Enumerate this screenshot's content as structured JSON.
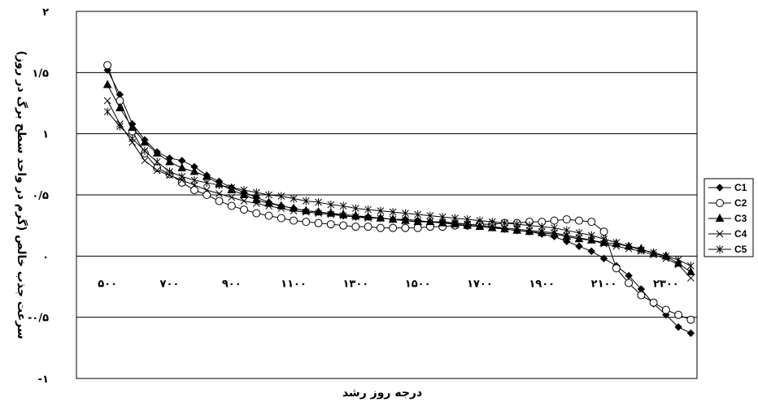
{
  "chart_data": {
    "type": "line",
    "xlabel": "درجه روز رشد",
    "ylabel": "سرعت جذب خالص (گرم در واحد سطح برگ در روز)",
    "xlim": [
      400,
      2400
    ],
    "ylim": [
      -1,
      2
    ],
    "x_ticks": [
      {
        "value": 500,
        "label": "۵۰۰"
      },
      {
        "value": 700,
        "label": "۷۰۰"
      },
      {
        "value": 900,
        "label": "۹۰۰"
      },
      {
        "value": 1100,
        "label": "۱۱۰۰"
      },
      {
        "value": 1300,
        "label": "۱۳۰۰"
      },
      {
        "value": 1500,
        "label": "۱۵۰۰"
      },
      {
        "value": 1700,
        "label": "۱۷۰۰"
      },
      {
        "value": 1900,
        "label": "۱۹۰۰"
      },
      {
        "value": 2100,
        "label": "۲۱۰۰"
      },
      {
        "value": 2300,
        "label": "۲۳۰۰"
      }
    ],
    "y_ticks": [
      {
        "value": 2,
        "label": "۲"
      },
      {
        "value": 1.5,
        "label": "۱/۵"
      },
      {
        "value": 1,
        "label": "۱"
      },
      {
        "value": 0.5,
        "label": "۰/۵"
      },
      {
        "value": 0,
        "label": "۰"
      },
      {
        "value": -0.5,
        "label": "-۰/۵"
      },
      {
        "value": -1,
        "label": "-۱"
      }
    ],
    "grid": true,
    "legend_position": "right",
    "x": [
      500,
      540,
      580,
      620,
      660,
      700,
      740,
      780,
      820,
      860,
      900,
      940,
      980,
      1020,
      1060,
      1100,
      1140,
      1180,
      1220,
      1260,
      1300,
      1340,
      1380,
      1420,
      1460,
      1500,
      1540,
      1580,
      1620,
      1660,
      1700,
      1740,
      1780,
      1820,
      1860,
      1900,
      1940,
      1980,
      2020,
      2060,
      2100,
      2140,
      2180,
      2220,
      2260,
      2300,
      2340,
      2380
    ],
    "series": [
      {
        "name": "C1",
        "marker": "diamond",
        "values": [
          1.52,
          1.32,
          1.08,
          0.95,
          0.85,
          0.8,
          0.78,
          0.73,
          0.66,
          0.61,
          0.56,
          0.52,
          0.48,
          0.44,
          0.41,
          0.39,
          0.37,
          0.36,
          0.35,
          0.33,
          0.32,
          0.32,
          0.31,
          0.3,
          0.3,
          0.29,
          0.28,
          0.28,
          0.27,
          0.26,
          0.25,
          0.24,
          0.22,
          0.21,
          0.2,
          0.18,
          0.16,
          0.12,
          0.08,
          0.04,
          -0.02,
          -0.08,
          -0.16,
          -0.27,
          -0.39,
          -0.48,
          -0.58,
          -0.63
        ]
      },
      {
        "name": "C2",
        "marker": "circle",
        "values": [
          1.56,
          1.27,
          1.02,
          0.84,
          0.72,
          0.67,
          0.6,
          0.54,
          0.5,
          0.45,
          0.41,
          0.38,
          0.35,
          0.33,
          0.31,
          0.29,
          0.28,
          0.27,
          0.26,
          0.25,
          0.24,
          0.24,
          0.23,
          0.23,
          0.23,
          0.23,
          0.24,
          0.24,
          0.25,
          0.25,
          0.26,
          0.26,
          0.27,
          0.27,
          0.28,
          0.28,
          0.29,
          0.3,
          0.29,
          0.28,
          0.2,
          -0.1,
          -0.22,
          -0.32,
          -0.38,
          -0.44,
          -0.48,
          -0.52
        ]
      },
      {
        "name": "C3",
        "marker": "triangle",
        "values": [
          1.4,
          1.21,
          1.05,
          0.93,
          0.84,
          0.77,
          0.72,
          0.69,
          0.65,
          0.59,
          0.54,
          0.5,
          0.46,
          0.43,
          0.41,
          0.39,
          0.37,
          0.36,
          0.35,
          0.34,
          0.33,
          0.32,
          0.31,
          0.3,
          0.29,
          0.28,
          0.28,
          0.27,
          0.26,
          0.25,
          0.24,
          0.23,
          0.22,
          0.21,
          0.2,
          0.19,
          0.18,
          0.16,
          0.14,
          0.13,
          0.11,
          0.1,
          0.08,
          0.06,
          0.02,
          0.0,
          -0.06,
          -0.13
        ]
      },
      {
        "name": "C4",
        "marker": "x",
        "values": [
          1.27,
          1.08,
          0.93,
          0.78,
          0.7,
          0.66,
          0.62,
          0.58,
          0.54,
          0.51,
          0.48,
          0.45,
          0.43,
          0.41,
          0.39,
          0.37,
          0.36,
          0.35,
          0.34,
          0.33,
          0.32,
          0.31,
          0.31,
          0.3,
          0.29,
          0.28,
          0.28,
          0.27,
          0.27,
          0.26,
          0.25,
          0.24,
          0.23,
          0.22,
          0.21,
          0.2,
          0.19,
          0.17,
          0.15,
          0.13,
          0.1,
          0.08,
          0.06,
          0.04,
          0.01,
          -0.02,
          -0.07,
          -0.18
        ]
      },
      {
        "name": "C5",
        "marker": "asterisk",
        "values": [
          1.18,
          1.06,
          0.96,
          0.86,
          0.77,
          0.69,
          0.65,
          0.62,
          0.6,
          0.58,
          0.56,
          0.54,
          0.52,
          0.5,
          0.49,
          0.47,
          0.45,
          0.44,
          0.42,
          0.41,
          0.39,
          0.38,
          0.37,
          0.36,
          0.35,
          0.34,
          0.33,
          0.32,
          0.31,
          0.3,
          0.29,
          0.28,
          0.27,
          0.26,
          0.25,
          0.24,
          0.23,
          0.21,
          0.19,
          0.17,
          0.14,
          0.11,
          0.08,
          0.05,
          0.03,
          0.0,
          -0.03,
          -0.08
        ]
      }
    ]
  }
}
